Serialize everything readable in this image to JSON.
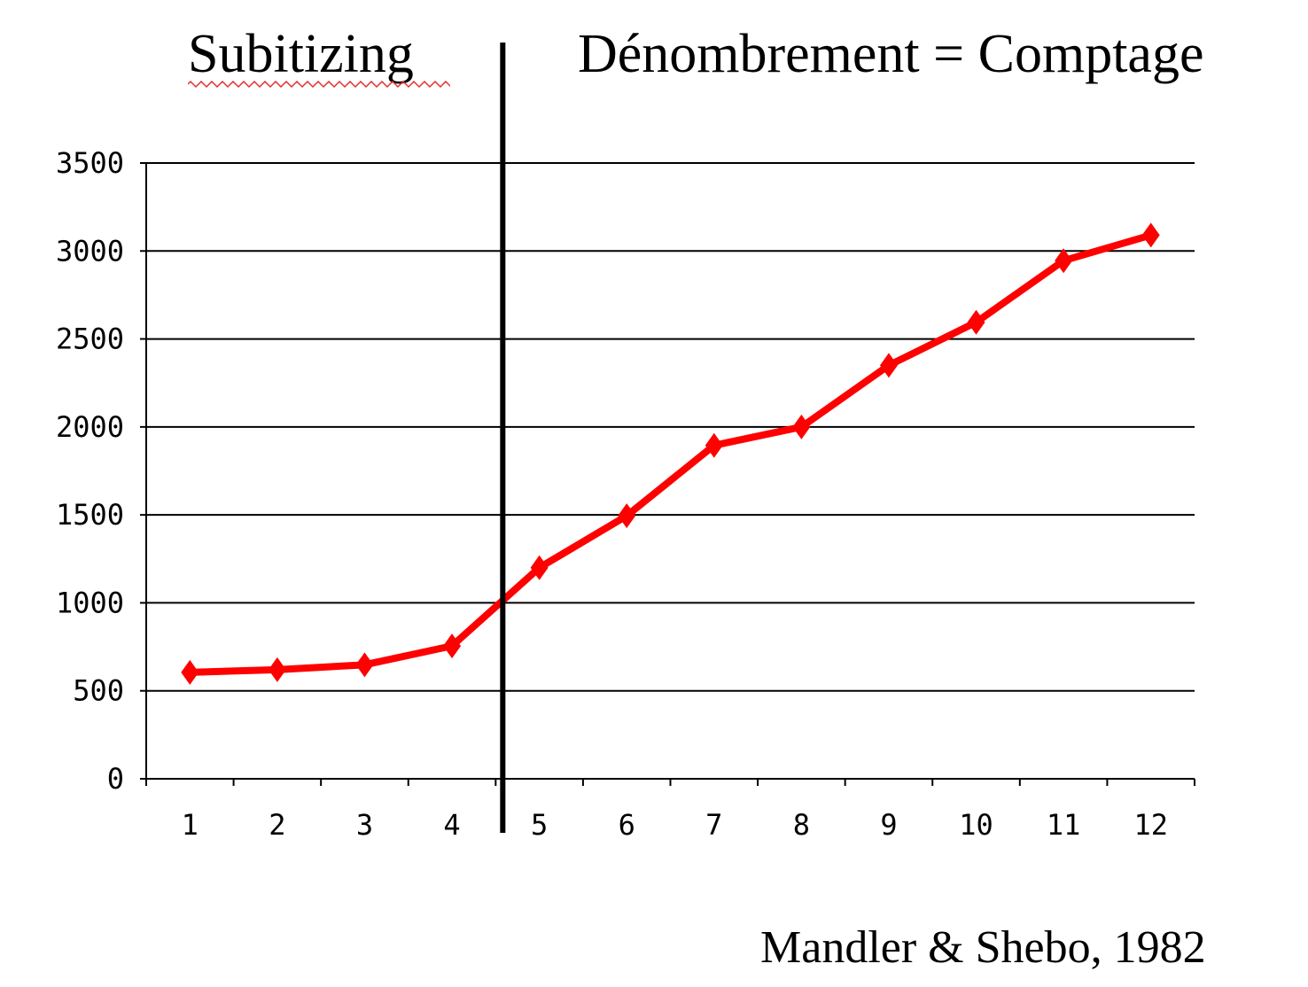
{
  "headings": {
    "left": "Subitizing",
    "right": "Dénombrement = Comptage"
  },
  "citation": "Mandler & Shebo, 1982",
  "chart_data": {
    "type": "line",
    "categories": [
      "1",
      "2",
      "3",
      "4",
      "5",
      "6",
      "7",
      "8",
      "9",
      "10",
      "11",
      "12"
    ],
    "x": [
      1,
      2,
      3,
      4,
      5,
      6,
      7,
      8,
      9,
      10,
      11,
      12
    ],
    "series": [
      {
        "values": [
          605,
          620,
          648,
          755,
          1200,
          1495,
          1895,
          2000,
          2350,
          2595,
          2945,
          3090
        ],
        "color": "#ff0000",
        "marker": "diamond"
      }
    ],
    "ylim": [
      0,
      3500
    ],
    "yticks": [
      0,
      500,
      1000,
      1500,
      2000,
      2500,
      3000,
      3500
    ],
    "grid": true,
    "divider_between": [
      4,
      5
    ],
    "title": "",
    "xlabel": "",
    "ylabel": ""
  }
}
